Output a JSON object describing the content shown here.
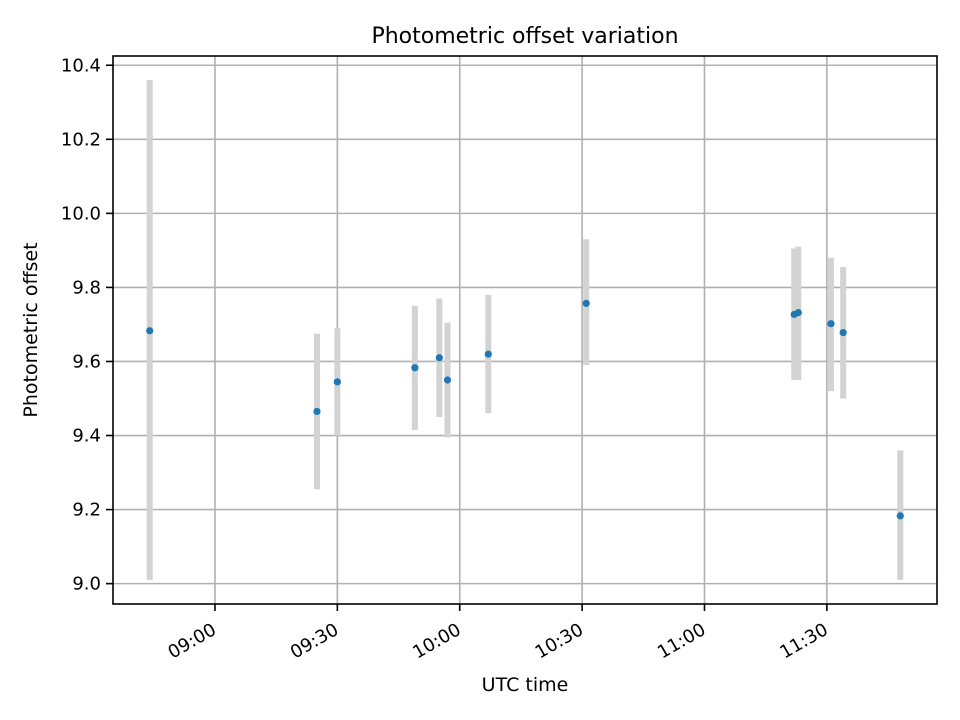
{
  "chart_data": {
    "type": "scatter",
    "title": "Photometric offset variation",
    "xlabel": "UTC time",
    "ylabel": "Photometric offset",
    "xlim": [
      "08:35",
      "11:57"
    ],
    "ylim": [
      8.945,
      10.425
    ],
    "xticks": [
      "09:00",
      "09:30",
      "10:00",
      "10:30",
      "11:00",
      "11:30"
    ],
    "yticks": [
      "9.0",
      "9.2",
      "9.4",
      "9.6",
      "9.8",
      "10.0",
      "10.2",
      "10.4"
    ],
    "grid": true,
    "colors": {
      "marker": "#1f77b4",
      "errorbar": "#d3d3d3",
      "grid": "#b0b0b0"
    },
    "points": [
      {
        "x": "08:44",
        "y": 9.683,
        "ymin": 9.01,
        "ymax": 10.36
      },
      {
        "x": "09:25",
        "y": 9.465,
        "ymin": 9.255,
        "ymax": 9.675
      },
      {
        "x": "09:30",
        "y": 9.545,
        "ymin": 9.4,
        "ymax": 9.69
      },
      {
        "x": "09:49",
        "y": 9.583,
        "ymin": 9.415,
        "ymax": 9.75
      },
      {
        "x": "09:55",
        "y": 9.61,
        "ymin": 9.45,
        "ymax": 9.77
      },
      {
        "x": "09:57",
        "y": 9.55,
        "ymin": 9.395,
        "ymax": 9.705
      },
      {
        "x": "10:07",
        "y": 9.62,
        "ymin": 9.46,
        "ymax": 9.78
      },
      {
        "x": "10:31",
        "y": 9.757,
        "ymin": 9.59,
        "ymax": 9.93
      },
      {
        "x": "11:22",
        "y": 9.727,
        "ymin": 9.55,
        "ymax": 9.905
      },
      {
        "x": "11:23",
        "y": 9.732,
        "ymin": 9.55,
        "ymax": 9.91
      },
      {
        "x": "11:31",
        "y": 9.702,
        "ymin": 9.52,
        "ymax": 9.88
      },
      {
        "x": "11:34",
        "y": 9.678,
        "ymin": 9.5,
        "ymax": 9.855
      },
      {
        "x": "11:48",
        "y": 9.183,
        "ymin": 9.01,
        "ymax": 9.36
      }
    ]
  }
}
